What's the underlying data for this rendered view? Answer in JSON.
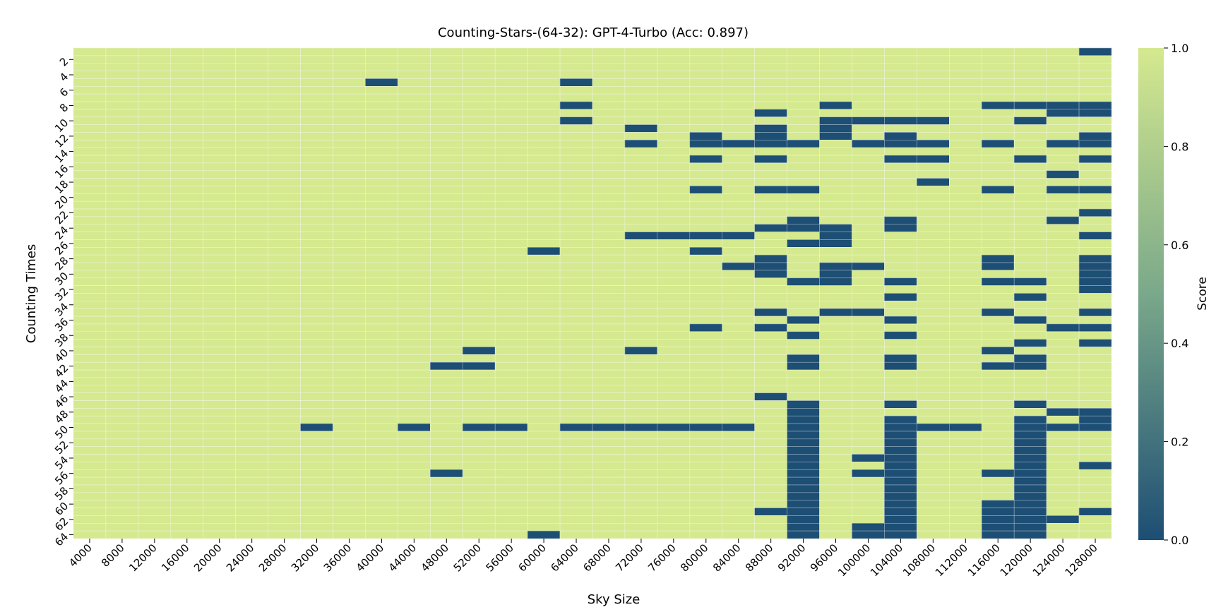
{
  "chart_data": {
    "type": "heatmap",
    "title": "Counting-Stars-(64-32): GPT-4-Turbo (Acc: 0.897)",
    "xlabel": "Sky Size",
    "ylabel": "Counting Times",
    "x_tick_labels": [
      "4000",
      "8000",
      "12000",
      "16000",
      "20000",
      "24000",
      "28000",
      "32000",
      "36000",
      "40000",
      "44000",
      "48000",
      "52000",
      "56000",
      "60000",
      "64000",
      "68000",
      "72000",
      "76000",
      "80000",
      "84000",
      "88000",
      "92000",
      "96000",
      "100000",
      "104000",
      "108000",
      "112000",
      "116000",
      "120000",
      "124000",
      "128000"
    ],
    "y_tick_labels": [
      "2",
      "4",
      "6",
      "8",
      "10",
      "12",
      "14",
      "16",
      "18",
      "20",
      "22",
      "24",
      "26",
      "28",
      "30",
      "32",
      "34",
      "36",
      "38",
      "40",
      "42",
      "44",
      "46",
      "48",
      "50",
      "52",
      "54",
      "56",
      "58",
      "60",
      "62",
      "64"
    ],
    "rows": [
      1,
      2,
      3,
      4,
      5,
      6,
      7,
      8,
      9,
      10,
      11,
      12,
      13,
      14,
      15,
      16,
      17,
      18,
      19,
      20,
      21,
      22,
      23,
      24,
      25,
      26,
      27,
      28,
      29,
      30,
      31,
      32,
      33,
      34,
      35,
      36,
      37,
      38,
      39,
      40,
      41,
      42,
      43,
      44,
      45,
      46,
      47,
      48,
      49,
      50,
      51,
      52,
      53,
      54,
      55,
      56,
      57,
      58,
      59,
      60,
      61,
      62,
      63,
      64
    ],
    "default_value": 1.0,
    "low_score_cells": {
      "4000": [],
      "8000": [],
      "12000": [],
      "16000": [],
      "20000": [],
      "24000": [],
      "28000": [],
      "32000": [
        50
      ],
      "36000": [],
      "40000": [
        5
      ],
      "44000": [
        50
      ],
      "48000": [
        42,
        56
      ],
      "52000": [
        40,
        42,
        50
      ],
      "56000": [
        50
      ],
      "60000": [
        27,
        64
      ],
      "64000": [
        5,
        8,
        10,
        50
      ],
      "68000": [
        50
      ],
      "72000": [
        11,
        13,
        25,
        40,
        50
      ],
      "76000": [
        25,
        50
      ],
      "80000": [
        12,
        13,
        15,
        19,
        25,
        27,
        37,
        50
      ],
      "84000": [
        13,
        25,
        29,
        50
      ],
      "88000": [
        9,
        11,
        12,
        13,
        15,
        19,
        24,
        28,
        29,
        30,
        35,
        37,
        46,
        61
      ],
      "92000": [
        13,
        19,
        23,
        24,
        26,
        31,
        36,
        38,
        41,
        42,
        47,
        48,
        49,
        50,
        51,
        52,
        53,
        54,
        55,
        56,
        57,
        58,
        59,
        60,
        61,
        62,
        63,
        64
      ],
      "96000": [
        8,
        10,
        11,
        12,
        24,
        25,
        26,
        29,
        30,
        31,
        35
      ],
      "100000": [
        10,
        13,
        29,
        35,
        54,
        56,
        63,
        64
      ],
      "104000": [
        10,
        12,
        13,
        15,
        23,
        24,
        31,
        33,
        36,
        38,
        41,
        42,
        47,
        49,
        50,
        51,
        52,
        53,
        54,
        55,
        56,
        57,
        58,
        59,
        60,
        61,
        62,
        63,
        64
      ],
      "108000": [
        10,
        13,
        15,
        18,
        50
      ],
      "112000": [
        50
      ],
      "116000": [
        8,
        13,
        19,
        28,
        29,
        31,
        35,
        40,
        42,
        56,
        60,
        61,
        62,
        63,
        64
      ],
      "120000": [
        8,
        10,
        15,
        31,
        33,
        36,
        39,
        41,
        42,
        47,
        49,
        50,
        51,
        52,
        53,
        54,
        55,
        56,
        57,
        58,
        59,
        60,
        61,
        62,
        63,
        64
      ],
      "124000": [
        8,
        9,
        13,
        17,
        19,
        23,
        37,
        48,
        50,
        62
      ],
      "128000": [
        1,
        8,
        9,
        12,
        13,
        15,
        19,
        22,
        25,
        28,
        29,
        30,
        31,
        32,
        35,
        37,
        39,
        48,
        49,
        50,
        55,
        61
      ]
    },
    "low_value": 0.0,
    "colorbar": {
      "label": "Score",
      "range": [
        0.0,
        1.0
      ],
      "ticks": [
        "0.0",
        "0.2",
        "0.4",
        "0.6",
        "0.8",
        "1.0"
      ],
      "colors": {
        "low": "#1d4e74",
        "mid": "#7aa88a",
        "high": "#d5e98f"
      }
    },
    "grid": true
  }
}
